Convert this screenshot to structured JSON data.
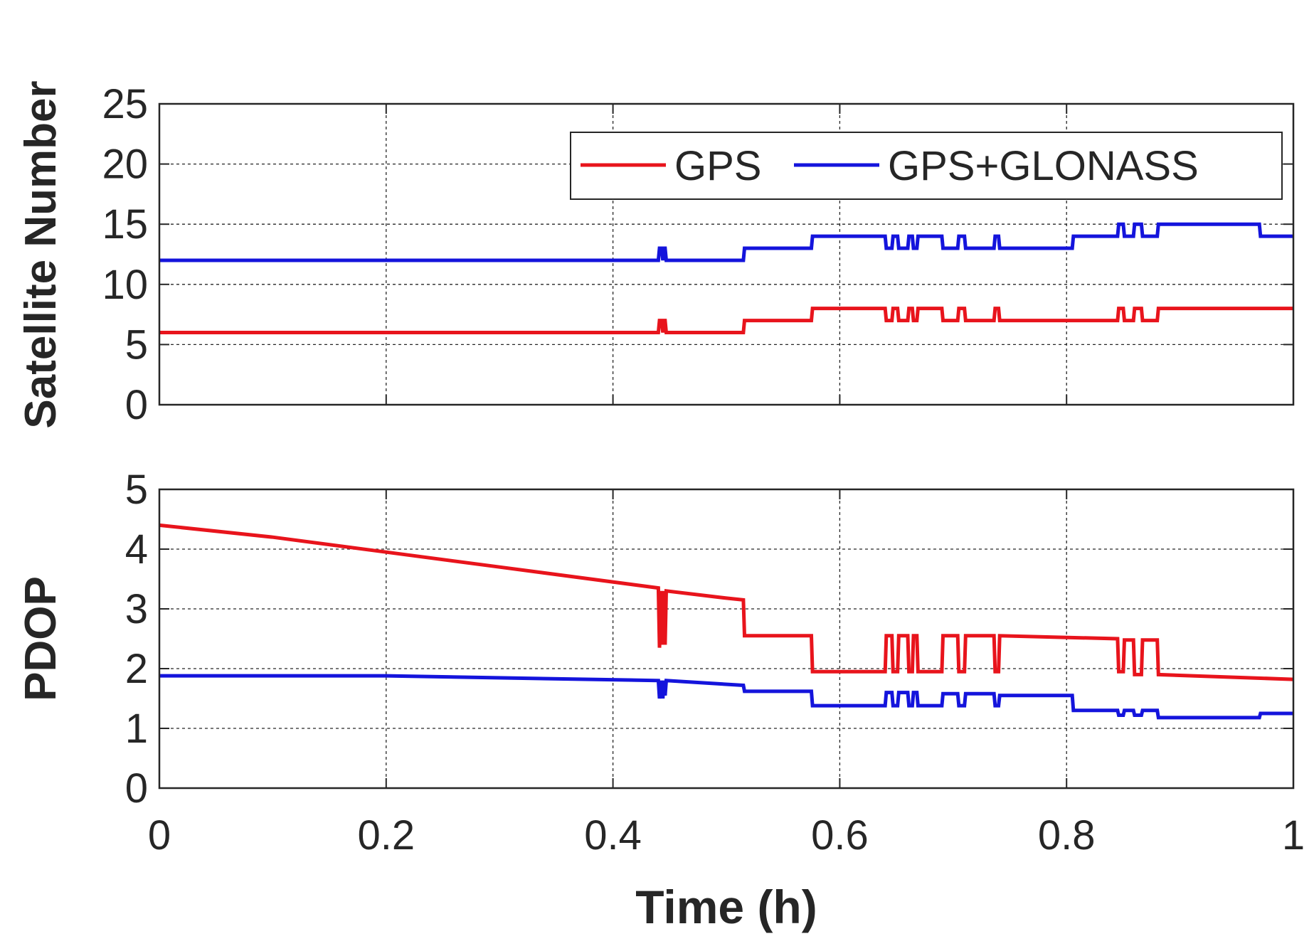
{
  "chart_data": [
    {
      "type": "line",
      "panel": "top",
      "title": "",
      "xlabel": "",
      "ylabel": "Satellite Number",
      "xlim": [
        0,
        1
      ],
      "ylim": [
        0,
        25
      ],
      "xticks": [
        0,
        0.2,
        0.4,
        0.6,
        0.8,
        1
      ],
      "yticks": [
        0,
        5,
        10,
        15,
        20,
        25
      ],
      "ytick_labels": [
        "0",
        "5",
        "10",
        "15",
        "20",
        "25"
      ],
      "grid": true,
      "legend": {
        "position": "top-right",
        "orientation": "horizontal"
      },
      "series": [
        {
          "name": "GPS",
          "color": "#e8141c",
          "x": [
            0,
            0.44,
            0.441,
            0.443,
            0.444,
            0.445,
            0.446,
            0.447,
            0.515,
            0.516,
            0.575,
            0.576,
            0.64,
            0.641,
            0.646,
            0.647,
            0.651,
            0.652,
            0.66,
            0.661,
            0.664,
            0.665,
            0.668,
            0.669,
            0.673,
            0.674,
            0.69,
            0.691,
            0.704,
            0.705,
            0.71,
            0.711,
            0.736,
            0.737,
            0.74,
            0.741,
            0.845,
            0.846,
            0.85,
            0.851,
            0.859,
            0.86,
            0.866,
            0.867,
            0.88,
            0.881,
            1.0
          ],
          "y": [
            6,
            6,
            7,
            7,
            6,
            7,
            7,
            6,
            6,
            7,
            7,
            8,
            8,
            7,
            7,
            8,
            8,
            7,
            7,
            8,
            8,
            7,
            7,
            8,
            8,
            8,
            8,
            7,
            7,
            8,
            8,
            7,
            7,
            8,
            8,
            7,
            7,
            8,
            8,
            7,
            7,
            8,
            8,
            7,
            7,
            8,
            8
          ]
        },
        {
          "name": "GPS+GLONASS",
          "color": "#1414dc",
          "x": [
            0,
            0.44,
            0.441,
            0.443,
            0.444,
            0.445,
            0.446,
            0.447,
            0.515,
            0.516,
            0.575,
            0.576,
            0.64,
            0.641,
            0.646,
            0.647,
            0.651,
            0.652,
            0.66,
            0.661,
            0.664,
            0.665,
            0.668,
            0.669,
            0.673,
            0.674,
            0.69,
            0.691,
            0.704,
            0.705,
            0.71,
            0.711,
            0.736,
            0.737,
            0.74,
            0.741,
            0.805,
            0.806,
            0.845,
            0.846,
            0.85,
            0.851,
            0.859,
            0.86,
            0.866,
            0.867,
            0.88,
            0.881,
            0.97,
            0.971,
            1.0
          ],
          "y": [
            12,
            12,
            13,
            13,
            12,
            13,
            13,
            12,
            12,
            13,
            13,
            14,
            14,
            13,
            13,
            14,
            14,
            13,
            13,
            14,
            14,
            13,
            13,
            14,
            14,
            14,
            14,
            13,
            13,
            14,
            14,
            13,
            13,
            14,
            14,
            13,
            13,
            14,
            14,
            15,
            15,
            14,
            14,
            15,
            15,
            14,
            14,
            15,
            15,
            14,
            14
          ]
        }
      ]
    },
    {
      "type": "line",
      "panel": "bottom",
      "title": "",
      "xlabel": "Time (h)",
      "ylabel": "PDOP",
      "xlim": [
        0,
        1
      ],
      "ylim": [
        0,
        5
      ],
      "xticks": [
        0,
        0.2,
        0.4,
        0.6,
        0.8,
        1
      ],
      "xtick_labels": [
        "0",
        "0.2",
        "0.4",
        "0.6",
        "0.8",
        "1"
      ],
      "yticks": [
        0,
        1,
        2,
        3,
        4,
        5
      ],
      "ytick_labels": [
        "0",
        "1",
        "2",
        "3",
        "4",
        "5"
      ],
      "grid": true,
      "series": [
        {
          "name": "GPS",
          "color": "#e8141c",
          "x": [
            0,
            0.1,
            0.2,
            0.3,
            0.44,
            0.441,
            0.443,
            0.444,
            0.445,
            0.446,
            0.447,
            0.5,
            0.515,
            0.516,
            0.575,
            0.576,
            0.64,
            0.641,
            0.646,
            0.647,
            0.651,
            0.652,
            0.66,
            0.661,
            0.664,
            0.665,
            0.668,
            0.669,
            0.673,
            0.674,
            0.69,
            0.691,
            0.704,
            0.705,
            0.71,
            0.711,
            0.736,
            0.737,
            0.74,
            0.741,
            0.845,
            0.846,
            0.85,
            0.851,
            0.859,
            0.86,
            0.866,
            0.867,
            0.88,
            0.881,
            1.0
          ],
          "y": [
            4.4,
            4.2,
            3.95,
            3.7,
            3.35,
            2.35,
            3.3,
            2.4,
            3.3,
            2.4,
            3.3,
            3.18,
            3.15,
            2.55,
            2.55,
            1.95,
            1.95,
            2.55,
            2.55,
            1.95,
            1.95,
            2.55,
            2.55,
            1.95,
            1.95,
            2.55,
            2.55,
            1.95,
            1.95,
            1.95,
            1.95,
            2.55,
            2.55,
            1.95,
            1.95,
            2.55,
            2.55,
            1.95,
            1.95,
            2.55,
            2.5,
            1.95,
            1.95,
            2.48,
            2.48,
            1.9,
            1.9,
            2.48,
            2.48,
            1.9,
            1.82
          ]
        },
        {
          "name": "GPS+GLONASS",
          "color": "#1414dc",
          "x": [
            0,
            0.2,
            0.44,
            0.441,
            0.443,
            0.444,
            0.445,
            0.446,
            0.447,
            0.515,
            0.516,
            0.575,
            0.576,
            0.64,
            0.641,
            0.646,
            0.647,
            0.651,
            0.652,
            0.66,
            0.661,
            0.664,
            0.665,
            0.668,
            0.669,
            0.673,
            0.674,
            0.69,
            0.691,
            0.704,
            0.705,
            0.71,
            0.711,
            0.736,
            0.737,
            0.74,
            0.741,
            0.805,
            0.806,
            0.845,
            0.846,
            0.85,
            0.851,
            0.859,
            0.86,
            0.866,
            0.867,
            0.88,
            0.881,
            0.97,
            0.971,
            1.0
          ],
          "y": [
            1.88,
            1.88,
            1.8,
            1.5,
            1.8,
            1.5,
            1.8,
            1.55,
            1.8,
            1.72,
            1.62,
            1.62,
            1.38,
            1.38,
            1.6,
            1.6,
            1.38,
            1.38,
            1.6,
            1.6,
            1.38,
            1.38,
            1.6,
            1.6,
            1.38,
            1.38,
            1.38,
            1.38,
            1.58,
            1.58,
            1.38,
            1.38,
            1.58,
            1.58,
            1.38,
            1.38,
            1.55,
            1.55,
            1.3,
            1.3,
            1.22,
            1.22,
            1.3,
            1.3,
            1.22,
            1.22,
            1.3,
            1.3,
            1.18,
            1.18,
            1.25,
            1.25
          ]
        }
      ]
    }
  ]
}
